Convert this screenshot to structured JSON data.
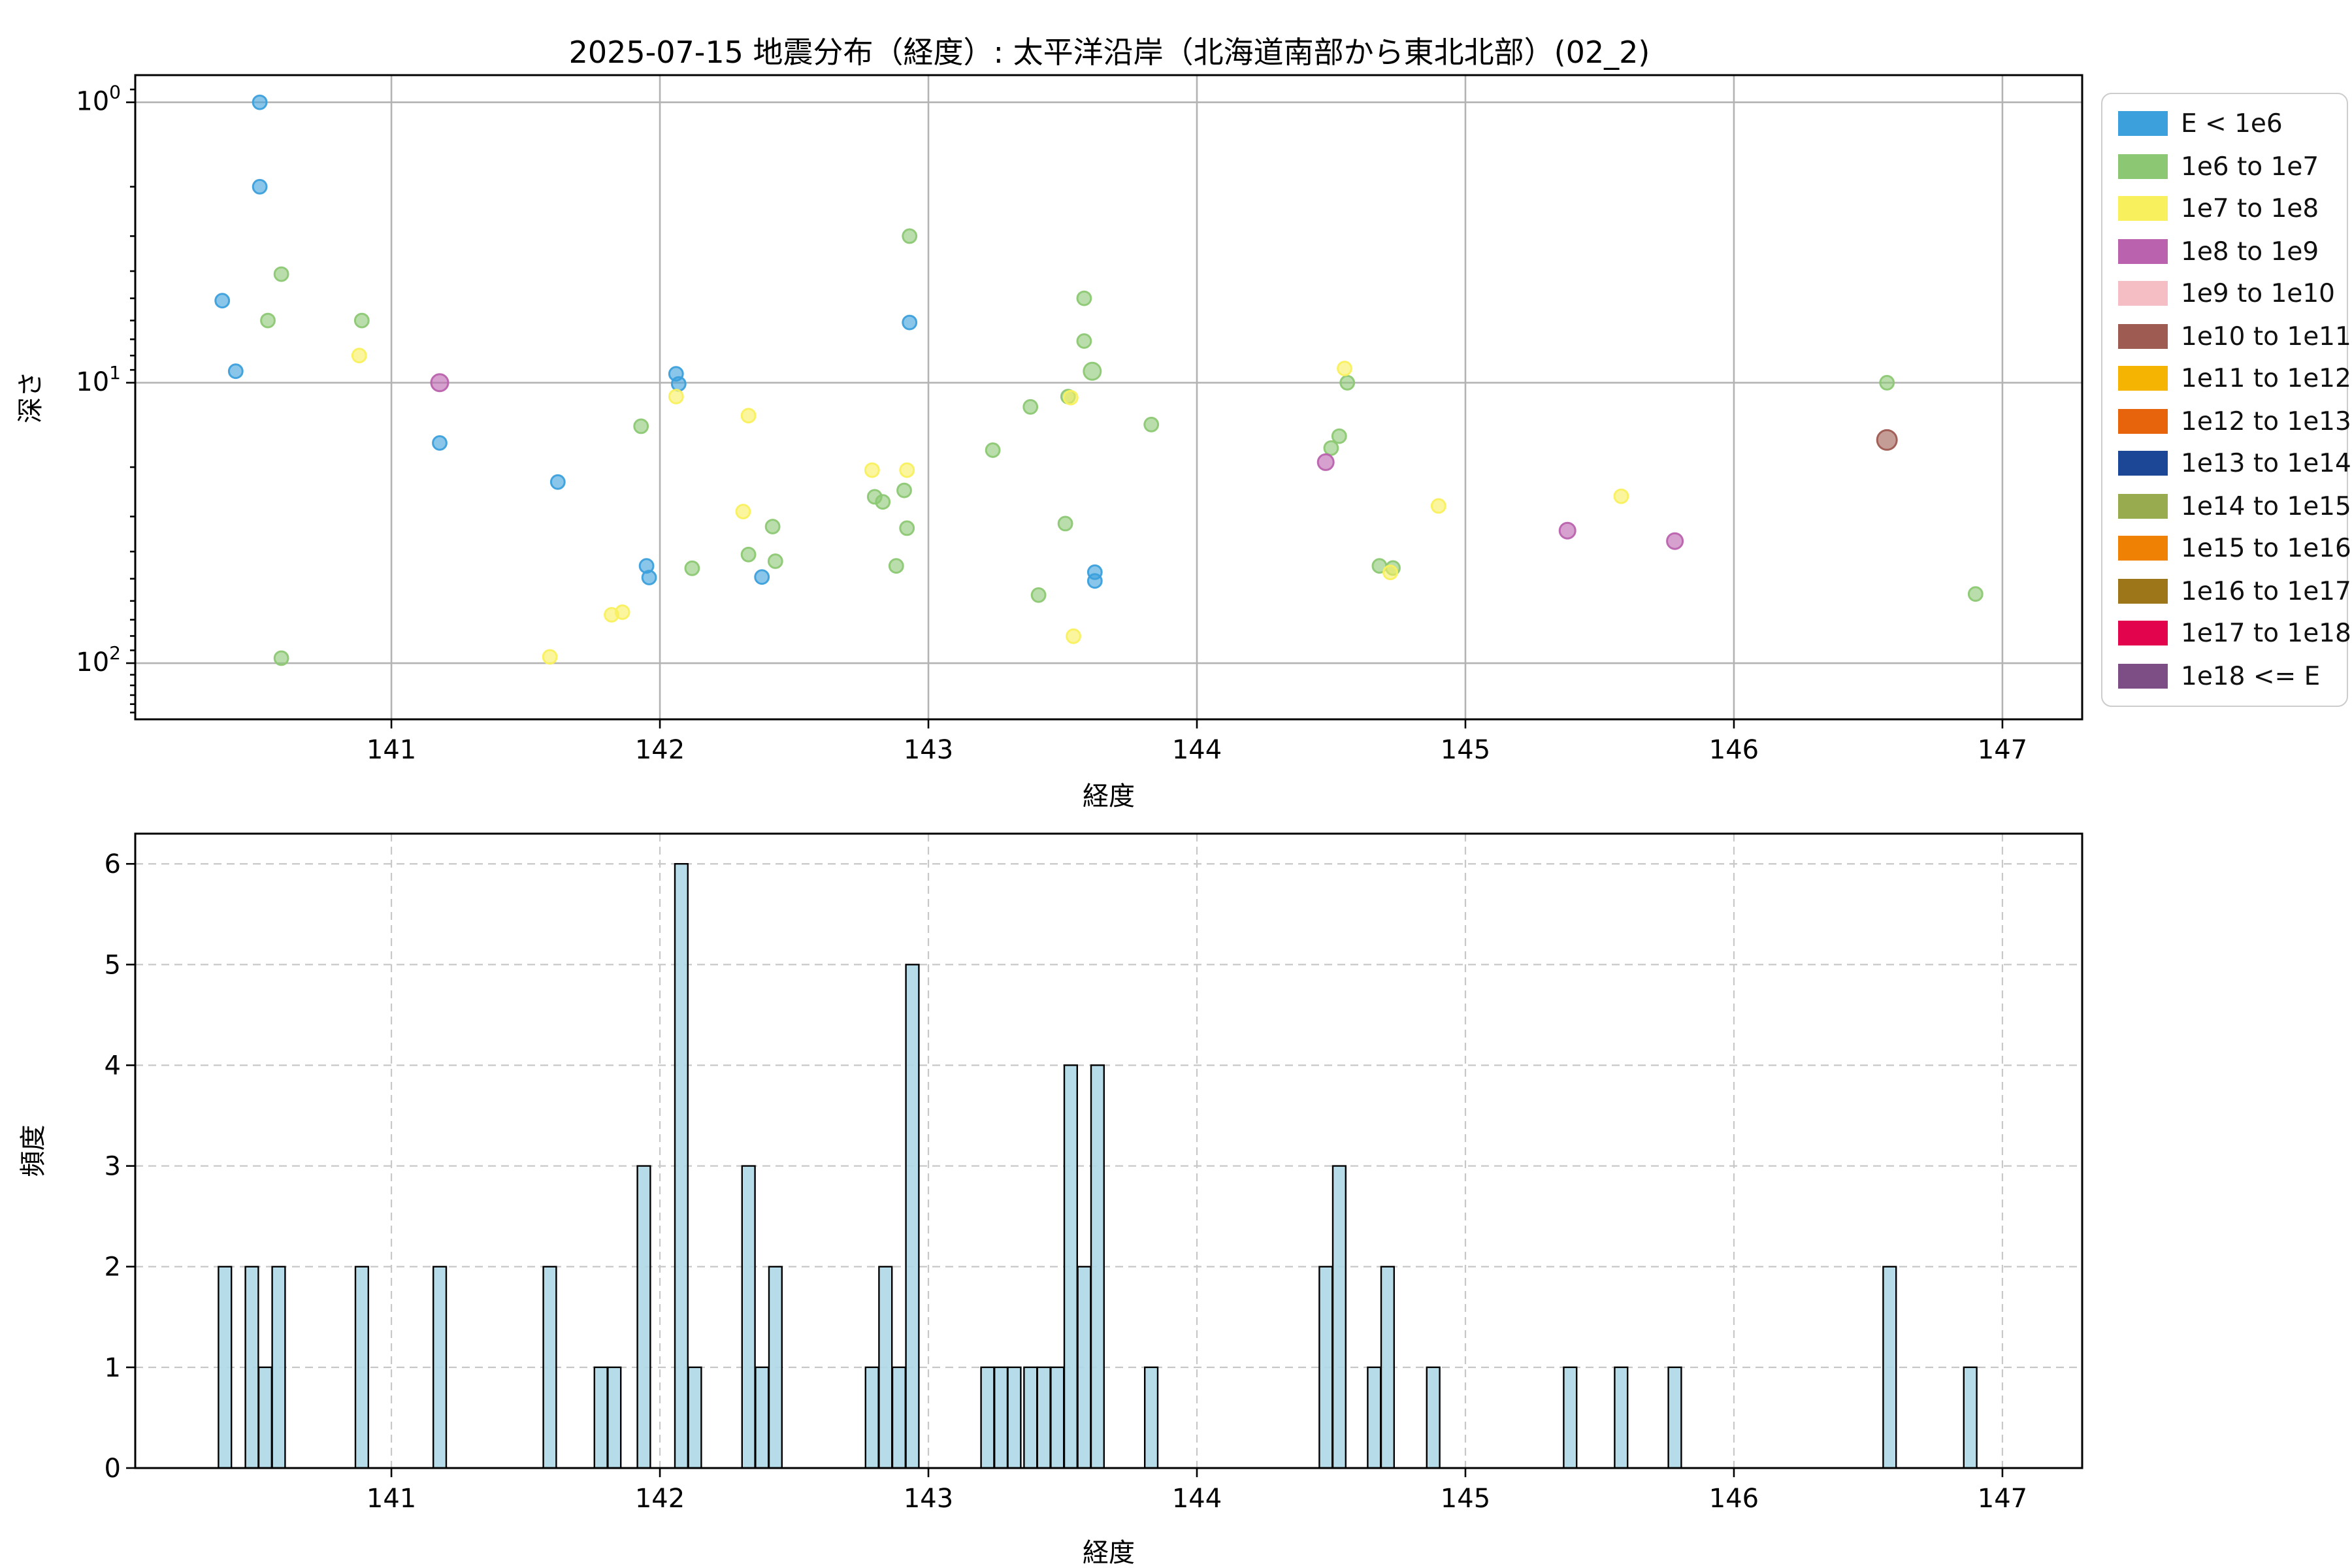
{
  "title": "2025-07-15 地震分布（経度）: 太平洋沿岸（北海道南部から東北北部）(02_2)",
  "legend": {
    "entries": [
      {
        "label": "E < 1e6",
        "color": "#3CA0DC"
      },
      {
        "label": "1e6 to 1e7",
        "color": "#8CC873"
      },
      {
        "label": "1e7 to 1e8",
        "color": "#F9F05E"
      },
      {
        "label": "1e8 to 1e9",
        "color": "#BA62AE"
      },
      {
        "label": "1e9 to 1e10",
        "color": "#F5BEC4"
      },
      {
        "label": "1e10 to 1e11",
        "color": "#9E5B52"
      },
      {
        "label": "1e11 to 1e12",
        "color": "#F5B402"
      },
      {
        "label": "1e12 to 1e13",
        "color": "#E8640C"
      },
      {
        "label": "1e13 to 1e14",
        "color": "#1C4796"
      },
      {
        "label": "1e14 to 1e15",
        "color": "#98AB4E"
      },
      {
        "label": "1e15 to 1e16",
        "color": "#EF8104"
      },
      {
        "label": "1e16 to 1e17",
        "color": "#9C7618"
      },
      {
        "label": "1e17 to 1e18",
        "color": "#E2054E"
      },
      {
        "label": "1e18 <= E",
        "color": "#7C4E85"
      }
    ]
  },
  "chart_data": [
    {
      "type": "scatter",
      "title": "2025-07-15 地震分布（経度）: 太平洋沿岸（北海道南部から東北北部）(02_2)",
      "xlabel": "経度",
      "ylabel": "深さ",
      "xscale": "linear",
      "yscale": "log",
      "y_inverted": true,
      "xlim": [
        140.046,
        147.297
      ],
      "ylim": [
        0.8,
        158.6
      ],
      "xticks": [
        141,
        142,
        143,
        144,
        145,
        146,
        147
      ],
      "yticks": [
        {
          "value": 1,
          "base": "10",
          "exp": "0"
        },
        {
          "value": 10,
          "base": "10",
          "exp": "1"
        },
        {
          "value": 100,
          "base": "10",
          "exp": "2"
        }
      ],
      "grid": "solid",
      "legend_position": "outside-upper-right",
      "series": [
        {
          "name": "E < 1e6",
          "color": "#3CA0DC",
          "points": [
            [
              140.51,
              1.0
            ],
            [
              140.51,
              2.0
            ],
            [
              140.37,
              5.1
            ],
            [
              140.42,
              9.1
            ],
            [
              141.18,
              16.4
            ],
            [
              141.62,
              22.6
            ],
            [
              141.95,
              45.0
            ],
            [
              141.96,
              49.5
            ],
            [
              142.06,
              9.3
            ],
            [
              142.07,
              10.1
            ],
            [
              142.38,
              49.3
            ],
            [
              142.93,
              6.1
            ],
            [
              143.62,
              47.4
            ],
            [
              143.62,
              50.9
            ]
          ]
        },
        {
          "name": "1e6 to 1e7",
          "color": "#8CC873",
          "points": [
            [
              140.59,
              4.1
            ],
            [
              140.54,
              6.0
            ],
            [
              140.89,
              6.0
            ],
            [
              140.59,
              96
            ],
            [
              141.93,
              14.3
            ],
            [
              142.12,
              45.9
            ],
            [
              142.33,
              41.0
            ],
            [
              142.42,
              32.6
            ],
            [
              142.43,
              43.3
            ],
            [
              142.8,
              25.5
            ],
            [
              142.83,
              26.6
            ],
            [
              142.91,
              24.2
            ],
            [
              142.92,
              33.0
            ],
            [
              142.88,
              45.0
            ],
            [
              142.93,
              3.0
            ],
            [
              143.24,
              17.4
            ],
            [
              143.38,
              12.2
            ],
            [
              143.41,
              57.2
            ],
            [
              143.51,
              31.8
            ],
            [
              143.52,
              11.2
            ],
            [
              143.58,
              5.0
            ],
            [
              143.58,
              7.1
            ],
            [
              143.61,
              9.1,
              6.5
            ],
            [
              143.83,
              14.1
            ],
            [
              144.5,
              17.1
            ],
            [
              144.53,
              15.5
            ],
            [
              144.56,
              10.0
            ],
            [
              144.68,
              45.0
            ],
            [
              144.73,
              45.8
            ],
            [
              146.57,
              10.0
            ],
            [
              146.9,
              56.7
            ]
          ]
        },
        {
          "name": "1e7 to 1e8",
          "color": "#F9F05E",
          "points": [
            [
              140.88,
              8.0
            ],
            [
              141.59,
              95
            ],
            [
              141.82,
              67.2
            ],
            [
              141.86,
              65.8
            ],
            [
              142.06,
              11.2
            ],
            [
              142.31,
              28.8
            ],
            [
              142.33,
              13.1
            ],
            [
              142.79,
              20.5
            ],
            [
              142.92,
              20.5
            ],
            [
              143.53,
              11.3
            ],
            [
              143.54,
              80.2
            ],
            [
              144.55,
              8.9
            ],
            [
              144.72,
              47.5
            ],
            [
              144.9,
              27.5
            ],
            [
              145.58,
              25.4
            ]
          ]
        },
        {
          "name": "1e8 to 1e9",
          "color": "#BA62AE",
          "points": [
            [
              141.18,
              10.0,
              6.5
            ],
            [
              144.48,
              19.2,
              6
            ],
            [
              145.38,
              33.7,
              6
            ],
            [
              145.78,
              36.7,
              6
            ]
          ]
        },
        {
          "name": "1e9 to 1e10",
          "color": "#F5BEC4",
          "points": []
        },
        {
          "name": "1e10 to 1e11",
          "color": "#9E5B52",
          "points": [
            [
              146.57,
              16.0,
              7.5
            ]
          ]
        },
        {
          "name": "1e11 to 1e12",
          "color": "#F5B402",
          "points": []
        },
        {
          "name": "1e12 to 1e13",
          "color": "#E8640C",
          "points": []
        },
        {
          "name": "1e13 to 1e14",
          "color": "#1C4796",
          "points": []
        },
        {
          "name": "1e14 to 1e15",
          "color": "#98AB4E",
          "points": []
        },
        {
          "name": "1e15 to 1e16",
          "color": "#EF8104",
          "points": []
        },
        {
          "name": "1e16 to 1e17",
          "color": "#9C7618",
          "points": []
        },
        {
          "name": "1e17 to 1e18",
          "color": "#E2054E",
          "points": []
        },
        {
          "name": "1e18 <= E",
          "color": "#7C4E85",
          "points": []
        }
      ]
    },
    {
      "type": "bar",
      "xlabel": "経度",
      "ylabel": "頻度",
      "xlim": [
        140.046,
        147.297
      ],
      "ylim": [
        0,
        6.3
      ],
      "xticks": [
        141,
        142,
        143,
        144,
        145,
        146,
        147
      ],
      "yticks": [
        0,
        1,
        2,
        3,
        4,
        5,
        6
      ],
      "grid": "dashed",
      "bar_color": "#ADD8E6",
      "bar_edge_color": "#000000",
      "bar_width": 0.048,
      "bars": [
        [
          140.38,
          2
        ],
        [
          140.48,
          2
        ],
        [
          140.53,
          1
        ],
        [
          140.58,
          2
        ],
        [
          140.89,
          2
        ],
        [
          141.18,
          2
        ],
        [
          141.59,
          2
        ],
        [
          141.78,
          1
        ],
        [
          141.83,
          1
        ],
        [
          141.94,
          3
        ],
        [
          142.08,
          6
        ],
        [
          142.13,
          1
        ],
        [
          142.33,
          3
        ],
        [
          142.38,
          1
        ],
        [
          142.43,
          2
        ],
        [
          142.79,
          1
        ],
        [
          142.84,
          2
        ],
        [
          142.89,
          1
        ],
        [
          142.94,
          5
        ],
        [
          143.22,
          1
        ],
        [
          143.27,
          1
        ],
        [
          143.32,
          1
        ],
        [
          143.38,
          1
        ],
        [
          143.43,
          1
        ],
        [
          143.48,
          1
        ],
        [
          143.53,
          4
        ],
        [
          143.58,
          2
        ],
        [
          143.63,
          4
        ],
        [
          143.83,
          1
        ],
        [
          144.48,
          2
        ],
        [
          144.53,
          3
        ],
        [
          144.66,
          1
        ],
        [
          144.71,
          2
        ],
        [
          144.88,
          1
        ],
        [
          145.39,
          1
        ],
        [
          145.58,
          1
        ],
        [
          145.78,
          1
        ],
        [
          146.58,
          2
        ],
        [
          146.88,
          1
        ]
      ]
    }
  ]
}
